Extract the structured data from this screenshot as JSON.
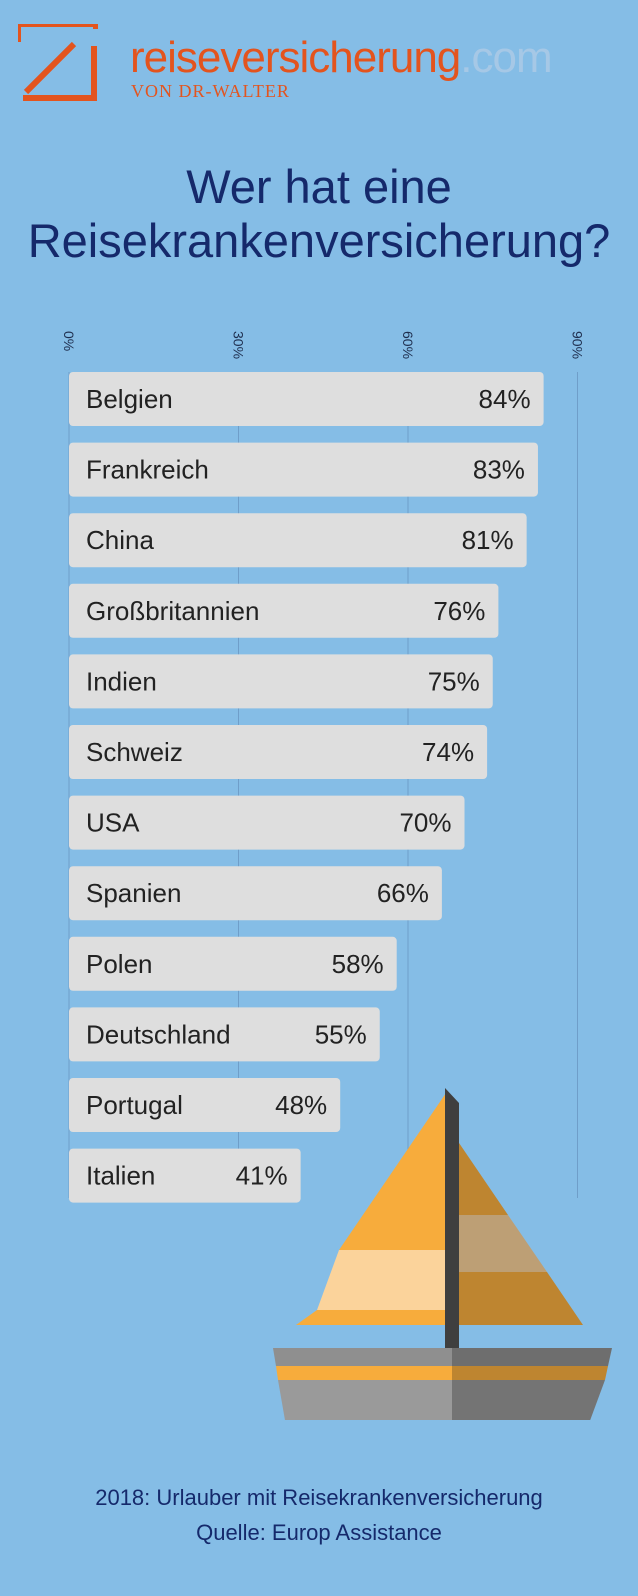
{
  "logo": {
    "brand": "reiseversicherung",
    "tld": ".com",
    "subtitle": "VON DR-WALTER",
    "colors": {
      "brand": "#e3541e",
      "tld": "#a6c8e6"
    }
  },
  "title_lines": [
    "Wer hat eine",
    "Reisekrankenversicherung?"
  ],
  "chart_data": {
    "type": "bar",
    "orientation": "horizontal",
    "categories": [
      "Belgien",
      "Frankreich",
      "China",
      "Großbritannien",
      "Indien",
      "Schweiz",
      "USA",
      "Spanien",
      "Polen",
      "Deutschland",
      "Portugal",
      "Italien"
    ],
    "values": [
      84,
      83,
      81,
      76,
      75,
      74,
      70,
      66,
      58,
      55,
      48,
      41
    ],
    "value_labels": [
      "84%",
      "83%",
      "81%",
      "76%",
      "75%",
      "74%",
      "70%",
      "66%",
      "58%",
      "55%",
      "48%",
      "41%"
    ],
    "unit": "%",
    "xlim": [
      0,
      90
    ],
    "xticks": [
      0,
      30,
      60,
      90
    ],
    "xtick_labels": [
      "0%",
      "30%",
      "60%",
      "90%"
    ],
    "grid": true,
    "bar_color": "#dedede",
    "grid_color": "#6f9ec9"
  },
  "footer": {
    "line1": "2018: Urlauber mit Reisekrankenversicherung",
    "line2": "Quelle: Europ Assistance"
  },
  "colors": {
    "background": "#85bde6",
    "title": "#15296b"
  }
}
